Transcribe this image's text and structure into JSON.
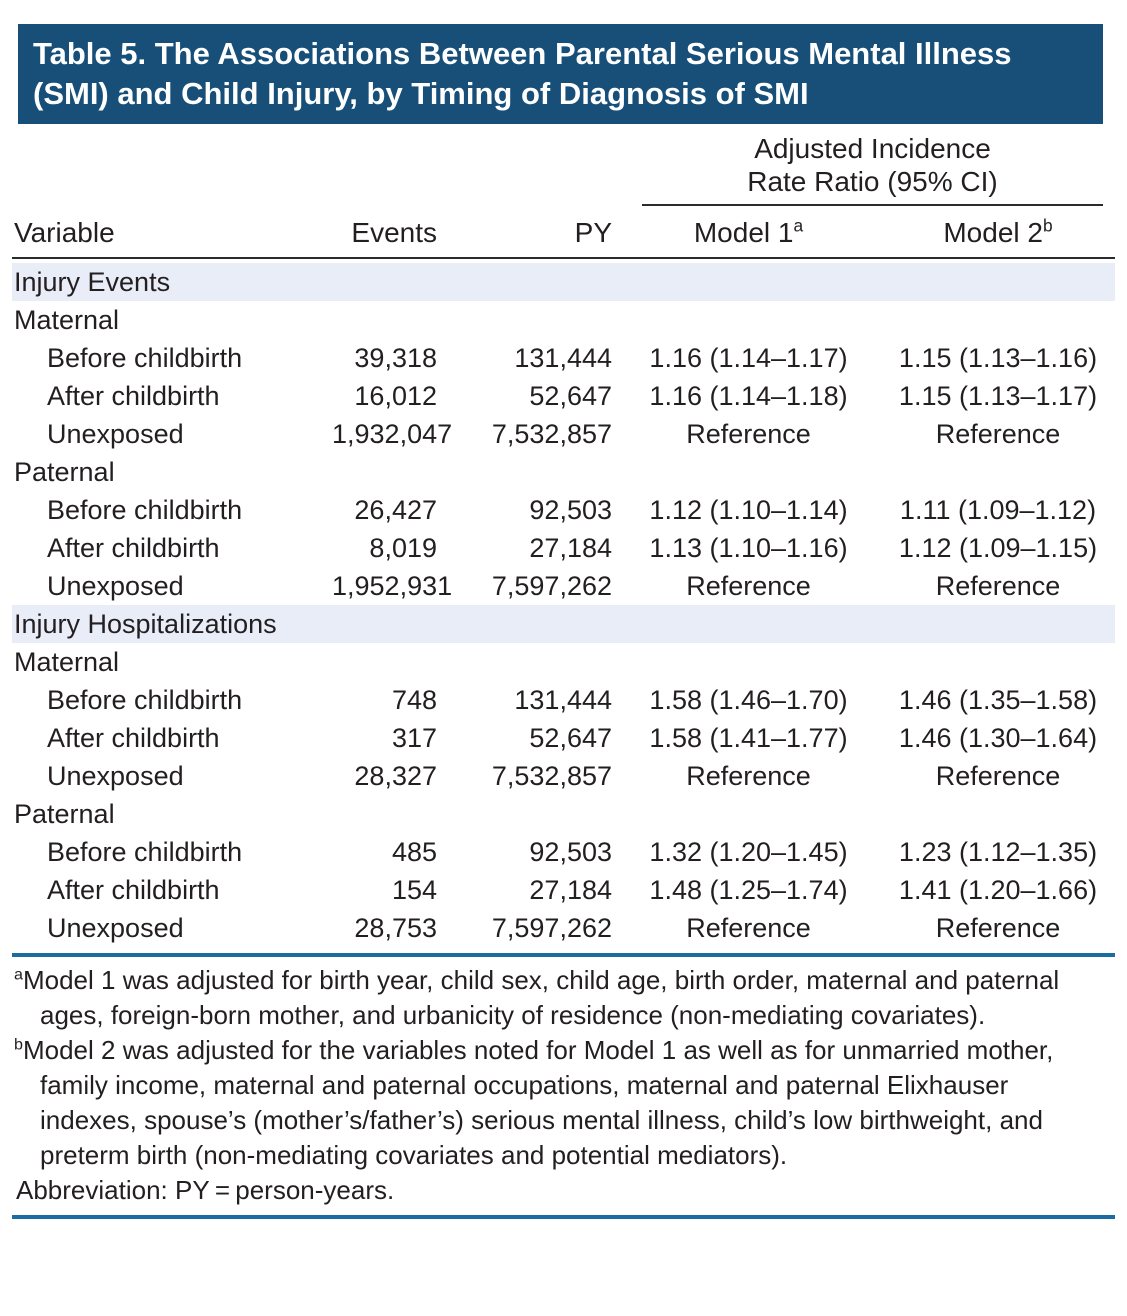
{
  "title": "Table 5. The Associations Between Parental Serious Mental Illness (SMI) and Child Injury, by Timing of Diagnosis of SMI",
  "header": {
    "spanner": "Adjusted Incidence Rate Ratio (95% CI)",
    "columns": {
      "variable": "Variable",
      "events": "Events",
      "py": "PY",
      "model1": "Model 1",
      "model1_sup": "a",
      "model2": "Model 2",
      "model2_sup": "b"
    }
  },
  "rows": [
    {
      "type": "section",
      "label": "Injury Events"
    },
    {
      "type": "group",
      "label": "Maternal"
    },
    {
      "type": "data",
      "label": "Before childbirth",
      "events": "39,318",
      "py": "131,444",
      "m1": "1.16 (1.14–1.17)",
      "m2": "1.15 (1.13–1.16)"
    },
    {
      "type": "data",
      "label": "After childbirth",
      "events": "16,012",
      "py": "52,647",
      "m1": "1.16 (1.14–1.18)",
      "m2": "1.15 (1.13–1.17)"
    },
    {
      "type": "data",
      "label": "Unexposed",
      "events": "1,932,047",
      "py": "7,532,857",
      "m1": "Reference",
      "m2": "Reference"
    },
    {
      "type": "group",
      "label": "Paternal"
    },
    {
      "type": "data",
      "label": "Before childbirth",
      "events": "26,427",
      "py": "92,503",
      "m1": "1.12 (1.10–1.14)",
      "m2": "1.11 (1.09–1.12)"
    },
    {
      "type": "data",
      "label": "After childbirth",
      "events": "8,019",
      "py": "27,184",
      "m1": "1.13 (1.10–1.16)",
      "m2": "1.12 (1.09–1.15)"
    },
    {
      "type": "data",
      "label": "Unexposed",
      "events": "1,952,931",
      "py": "7,597,262",
      "m1": "Reference",
      "m2": "Reference"
    },
    {
      "type": "section",
      "label": "Injury Hospitalizations"
    },
    {
      "type": "group",
      "label": "Maternal"
    },
    {
      "type": "data",
      "label": "Before childbirth",
      "events": "748",
      "py": "131,444",
      "m1": "1.58 (1.46–1.70)",
      "m2": "1.46 (1.35–1.58)"
    },
    {
      "type": "data",
      "label": "After childbirth",
      "events": "317",
      "py": "52,647",
      "m1": "1.58 (1.41–1.77)",
      "m2": "1.46 (1.30–1.64)"
    },
    {
      "type": "data",
      "label": "Unexposed",
      "events": "28,327",
      "py": "7,532,857",
      "m1": "Reference",
      "m2": "Reference"
    },
    {
      "type": "group",
      "label": "Paternal"
    },
    {
      "type": "data",
      "label": "Before childbirth",
      "events": "485",
      "py": "92,503",
      "m1": "1.32 (1.20–1.45)",
      "m2": "1.23 (1.12–1.35)"
    },
    {
      "type": "data",
      "label": "After childbirth",
      "events": "154",
      "py": "27,184",
      "m1": "1.48 (1.25–1.74)",
      "m2": "1.41 (1.20–1.66)"
    },
    {
      "type": "data",
      "label": "Unexposed",
      "events": "28,753",
      "py": "7,597,262",
      "m1": "Reference",
      "m2": "Reference"
    }
  ],
  "footnotes": [
    {
      "marker": "a",
      "text": "Model 1 was adjusted for birth year, child sex, child age, birth order, maternal and paternal ages, foreign-born mother, and urbanicity of residence (non-mediating covariates)."
    },
    {
      "marker": "b",
      "text": "Model 2 was adjusted for the variables noted for Model 1 as well as for unmarried mother, family income, maternal and paternal occupations, maternal and paternal Elixhauser indexes, spouse’s (mother’s/father’s) serious mental illness, child’s low birthweight, and preterm birth (non-mediating covariates and potential mediators)."
    }
  ],
  "abbreviation": "Abbreviation: PY = person-years.",
  "colors": {
    "title_bar": "#174f79",
    "section_band": "#e8edf8",
    "blue_rule": "#1a6ca3",
    "dark_rule": "#2b2b2b",
    "text": "#231f20"
  }
}
